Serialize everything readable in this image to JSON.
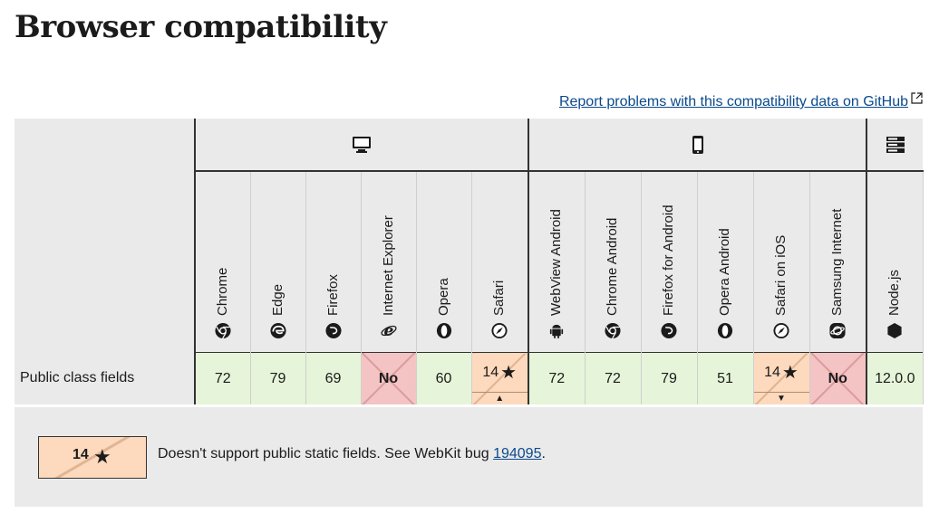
{
  "title": "Browser compatibility",
  "report_link": "Report problems with this compatibility data on GitHub",
  "platforms": [
    {
      "name": "desktop",
      "icon": "desktop-icon"
    },
    {
      "name": "mobile",
      "icon": "mobile-icon"
    },
    {
      "name": "server",
      "icon": "server-icon"
    }
  ],
  "browsers": [
    {
      "name": "Chrome",
      "icon": "chrome-icon"
    },
    {
      "name": "Edge",
      "icon": "edge-icon"
    },
    {
      "name": "Firefox",
      "icon": "firefox-icon"
    },
    {
      "name": "Internet Explorer",
      "icon": "internet-explorer-icon"
    },
    {
      "name": "Opera",
      "icon": "opera-icon"
    },
    {
      "name": "Safari",
      "icon": "safari-icon"
    },
    {
      "name": "WebView Android",
      "icon": "android-icon"
    },
    {
      "name": "Chrome Android",
      "icon": "chrome-icon"
    },
    {
      "name": "Firefox for Android",
      "icon": "firefox-icon"
    },
    {
      "name": "Opera Android",
      "icon": "opera-icon"
    },
    {
      "name": "Safari on iOS",
      "icon": "safari-icon"
    },
    {
      "name": "Samsung Internet",
      "icon": "samsung-internet-icon"
    },
    {
      "name": "Node.js",
      "icon": "nodejs-icon"
    }
  ],
  "feature": {
    "name": "Public class fields",
    "support": [
      "72",
      "79",
      "69",
      "No",
      "60",
      "14",
      "72",
      "72",
      "79",
      "51",
      "14",
      "No",
      "12.0.0"
    ]
  },
  "note": {
    "version": "14",
    "star": "★",
    "text_before": "Doesn't support public static fields. See WebKit bug",
    "bug_link": "194095",
    "text_after": "."
  },
  "colors": {
    "supported": "#e6f4d9",
    "unsupported": "#f4c4c4",
    "partial": "#fdd9bd",
    "link": "#0b4a8c"
  }
}
